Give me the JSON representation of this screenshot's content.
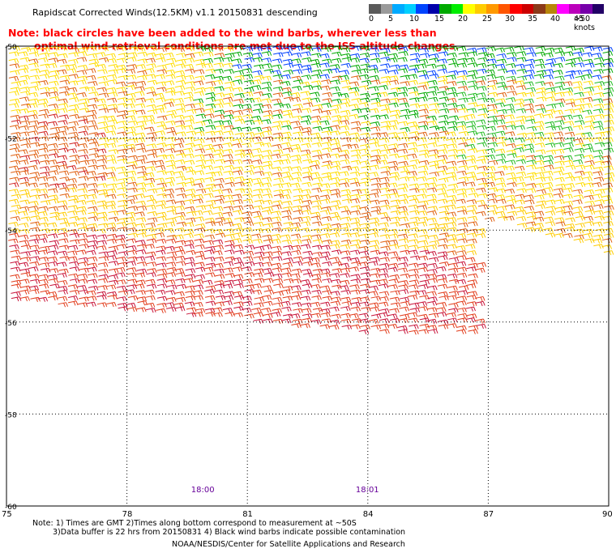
{
  "title": "Rapidscat Corrected Winds(12.5KM) v1.1 20150831 descending",
  "note": {
    "line1": "Note: black circles have been added to the wind barbs, wherever less than",
    "line2": "optimal wind retrieval conditions are met due to the ISS altitude changes."
  },
  "legend": {
    "labels": [
      "0",
      "5",
      "10",
      "15",
      "20",
      "25",
      "30",
      "35",
      "40",
      "45",
      ">50 knots"
    ],
    "colors": [
      "#5a5a5a",
      "#9a9a9a",
      "#00aaff",
      "#00d0ff",
      "#0044ff",
      "#0000aa",
      "#00aa00",
      "#00ee00",
      "#ffff00",
      "#ffcc00",
      "#ff9900",
      "#ff5500",
      "#ff0000",
      "#cc0000",
      "#8b3a1a",
      "#b8860b",
      "#ff00ff",
      "#bb00bb",
      "#7700aa",
      "#220066"
    ]
  },
  "axes": {
    "lon_labels": [
      "75",
      "78",
      "81",
      "84",
      "87",
      "90"
    ],
    "lat_labels": [
      "-50",
      "-52",
      "-54",
      "-56",
      "-58",
      "-60"
    ]
  },
  "times": [
    "18:00",
    "18:01"
  ],
  "footer": {
    "line1": "Note: 1) Times are GMT 2)Times along bottom correspond to measurement at ~50S",
    "line2": "3)Data buffer is 22 hrs from 20150831 4) Black wind barbs indicate possible contamination",
    "line3": "NOAA/NESDIS/Center for Satellite Applications and Research"
  },
  "colors": {
    "note": "#ff0000",
    "time_labels": "#660099",
    "grid": "#000000"
  }
}
